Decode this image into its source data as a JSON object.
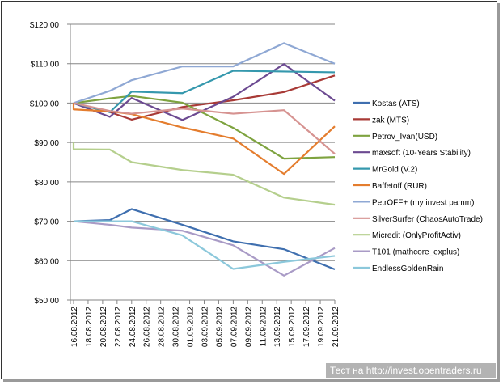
{
  "chart_data": {
    "type": "line",
    "title": "",
    "xlabel": "",
    "ylabel": "",
    "ylim": [
      50,
      120
    ],
    "y_ticks": [
      "$50,00",
      "$60,00",
      "$70,00",
      "$80,00",
      "$90,00",
      "$100,00",
      "$110,00",
      "$120,00"
    ],
    "x_ticks": [
      "16.08.2012",
      "18.08.2012",
      "20.08.2012",
      "22.08.2012",
      "24.08.2012",
      "26.08.2012",
      "28.08.2012",
      "30.08.2012",
      "01.09.2012",
      "03.09.2012",
      "05.09.2012",
      "07.09.2012",
      "09.09.2012",
      "11.09.2012",
      "13.09.2012",
      "15.09.2012",
      "17.09.2012",
      "19.09.2012",
      "21.09.2012"
    ],
    "grid": true,
    "legend_position": "right",
    "x": [
      "16.08.2012",
      "21.08.2012",
      "24.08.2012",
      "31.08.2012",
      "07.09.2012",
      "14.09.2012",
      "21.09.2012"
    ],
    "series": [
      {
        "name": "Kostas (ATS)",
        "color": "#3f6faf",
        "values": [
          70,
          70.3,
          73.1,
          69.1,
          64.9,
          62.9,
          57.8
        ]
      },
      {
        "name": "zak (MTS)",
        "color": "#a83a36",
        "values": [
          100,
          97.7,
          95.8,
          99.0,
          100.7,
          102.8,
          107.0
        ]
      },
      {
        "name": "Petrov_Ivan(USD)",
        "color": "#7ea33f",
        "values": [
          100,
          101.2,
          101.8,
          100.1,
          93.7,
          85.9,
          86.3
        ]
      },
      {
        "name": "maxsoft (10-Years Stability)",
        "color": "#6c4a91",
        "values": [
          100,
          96.5,
          101.3,
          95.7,
          101.6,
          109.9,
          100.6
        ]
      },
      {
        "name": "MrGold (V.2)",
        "color": "#3598ad",
        "values": [
          100,
          97.7,
          102.9,
          102.5,
          108.2,
          108.0,
          107.8
        ]
      },
      {
        "name": "Baffetoff (RUR)",
        "color": "#e47d2e",
        "start_value": 100,
        "values": [
          98.4,
          97.9,
          97.2,
          93.8,
          91.0,
          82.0,
          94.1
        ]
      },
      {
        "name": "PetrOFF+ (my invest pamm)",
        "color": "#8fa8d4",
        "values": [
          100,
          103.1,
          105.8,
          109.3,
          109.3,
          115.2,
          110.0
        ]
      },
      {
        "name": "SilverSurfer (ChaosAutoTrade)",
        "color": "#d69391",
        "values": [
          100,
          98.0,
          97.3,
          98.6,
          97.3,
          98.2,
          87.1
        ]
      },
      {
        "name": "Micredit (OnlyProfitActiv)",
        "color": "#b5cf8d",
        "start_value": 90,
        "values": [
          88.3,
          88.2,
          85.0,
          83.0,
          81.8,
          76.0,
          74.2
        ]
      },
      {
        "name": "T101 (mathcore_explus)",
        "color": "#a99bc6",
        "values": [
          70,
          69.1,
          68.4,
          67.6,
          63.9,
          56.2,
          63.2
        ]
      },
      {
        "name": "EndlessGoldenRain",
        "color": "#8cc8db",
        "values": [
          70,
          70,
          70,
          66.4,
          57.9,
          59.7,
          61.2
        ]
      }
    ]
  },
  "watermark": "Тест на http://invest.opentraders.ru"
}
